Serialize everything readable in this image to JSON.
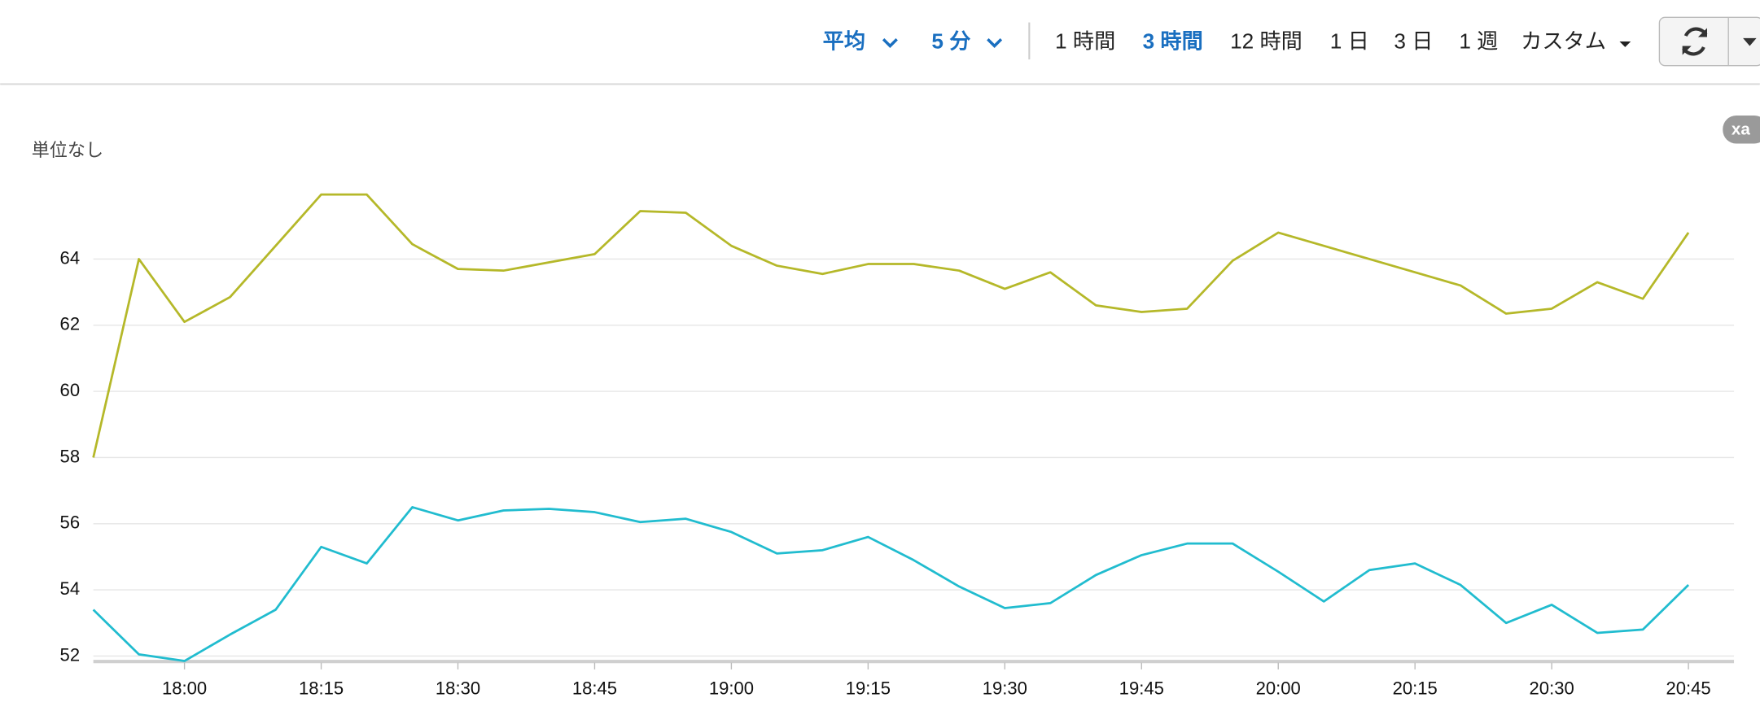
{
  "toolbar": {
    "statistic": "平均",
    "period": "5 分",
    "ranges": [
      "1 時間",
      "3 時間",
      "12 時間",
      "1 日",
      "3 日",
      "1 週"
    ],
    "active_range": 1,
    "custom": "カスタム"
  },
  "badge": "xa",
  "chart_data": {
    "type": "line",
    "y_label": "単位なし",
    "x": [
      "17:50",
      "17:55",
      "18:00",
      "18:05",
      "18:10",
      "18:15",
      "18:20",
      "18:25",
      "18:30",
      "18:35",
      "18:40",
      "18:45",
      "18:50",
      "18:55",
      "19:00",
      "19:05",
      "19:10",
      "19:15",
      "19:20",
      "19:25",
      "19:30",
      "19:35",
      "19:40",
      "19:45",
      "19:50",
      "19:55",
      "20:00",
      "20:05",
      "20:10",
      "20:15",
      "20:20",
      "20:25",
      "20:30",
      "20:35",
      "20:40",
      "20:45"
    ],
    "series": [
      {
        "color": "#b5b829",
        "values": [
          58.0,
          64.0,
          62.1,
          62.85,
          64.4,
          65.95,
          65.95,
          64.45,
          63.7,
          63.65,
          63.9,
          64.15,
          65.45,
          65.4,
          64.4,
          63.8,
          63.55,
          63.85,
          63.85,
          63.65,
          63.1,
          63.6,
          62.6,
          62.4,
          62.5,
          63.95,
          64.8,
          64.4,
          64.0,
          63.6,
          63.2,
          62.35,
          62.5,
          63.3,
          62.8,
          64.8
        ]
      },
      {
        "color": "#21bccf",
        "values": [
          53.4,
          52.05,
          51.85,
          52.65,
          53.4,
          55.3,
          54.8,
          56.5,
          56.1,
          56.4,
          56.45,
          56.35,
          56.05,
          56.15,
          55.75,
          55.1,
          55.2,
          55.6,
          54.9,
          54.1,
          53.45,
          53.6,
          54.45,
          55.05,
          55.4,
          55.4,
          54.55,
          53.65,
          54.6,
          54.8,
          54.15,
          53.0,
          53.55,
          52.7,
          52.8,
          54.15
        ]
      }
    ],
    "xlim": [
      "17:50",
      "20:50"
    ],
    "xticks": [
      "18:00",
      "18:15",
      "18:30",
      "18:45",
      "19:00",
      "19:15",
      "19:30",
      "19:45",
      "20:00",
      "20:15",
      "20:30",
      "20:45"
    ],
    "ylim": [
      51.8,
      66.8
    ],
    "yticks": [
      52,
      54,
      56,
      58,
      60,
      62,
      64
    ],
    "grid": true
  }
}
